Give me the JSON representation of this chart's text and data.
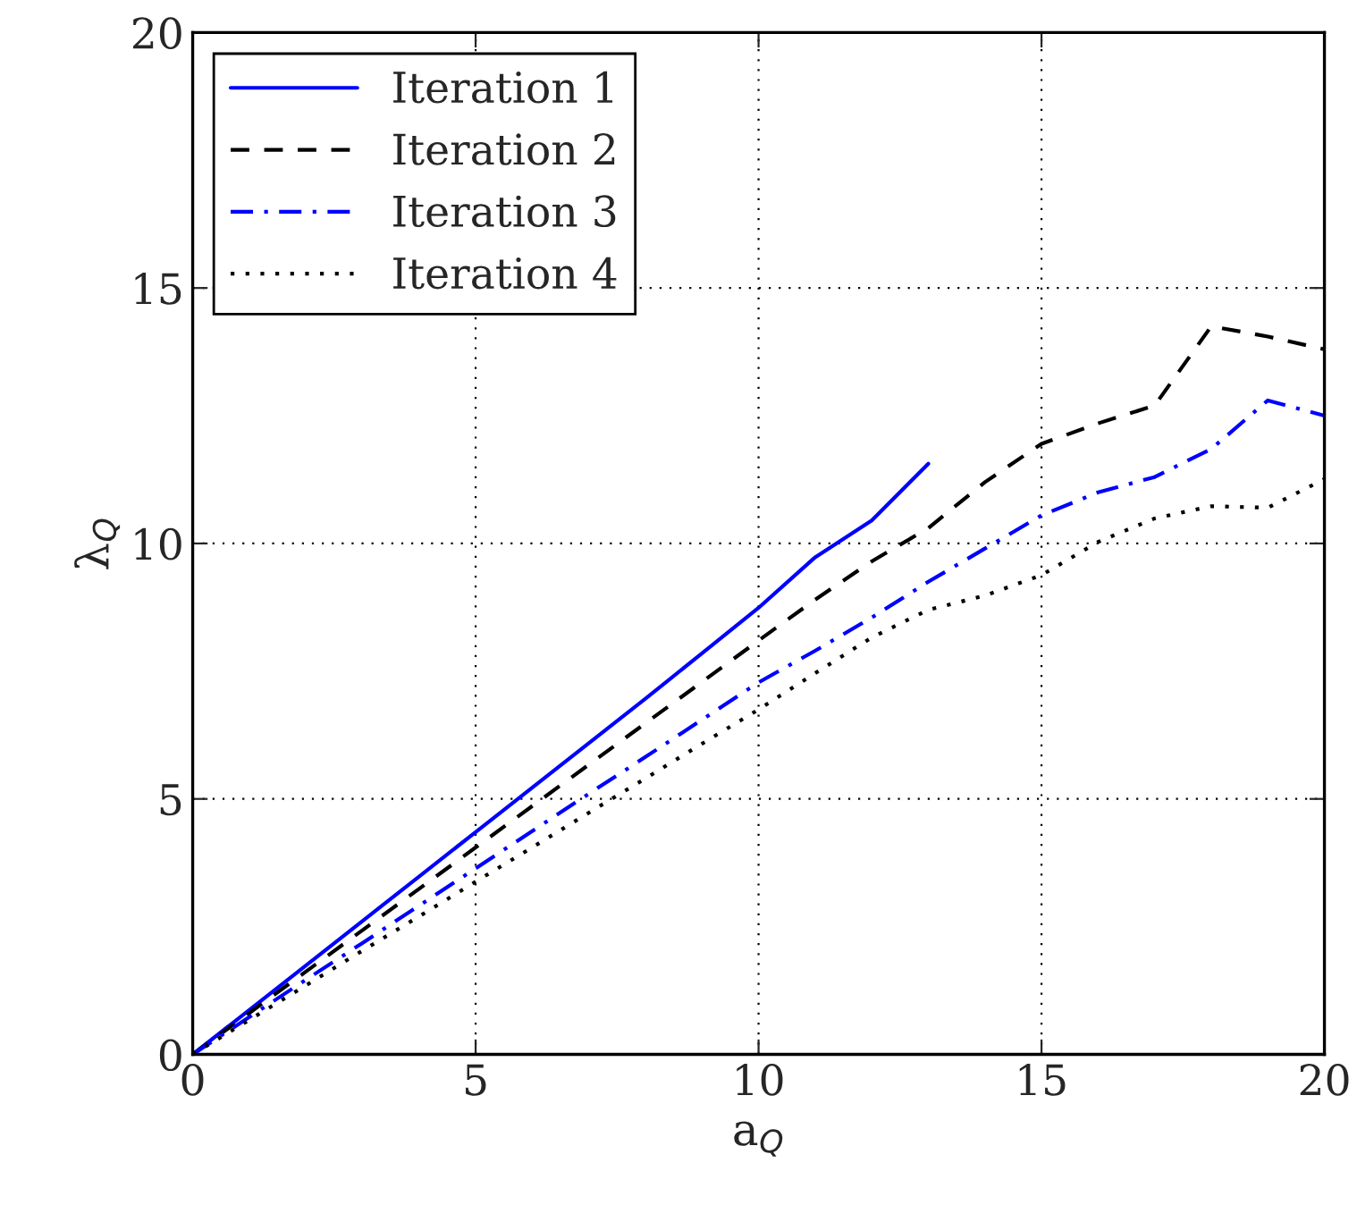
{
  "chart_data": {
    "type": "line",
    "xlabel": "a$_{Q}$",
    "ylabel": "λ$_{Q}$",
    "xlim": [
      0,
      20
    ],
    "ylim": [
      0,
      20
    ],
    "xticks": [
      0,
      5,
      10,
      15,
      20
    ],
    "yticks": [
      0,
      5,
      10,
      15,
      20
    ],
    "grid": true,
    "legend": "top left",
    "series": [
      {
        "name": "Iteration 1",
        "color": "#0000ff",
        "line_style": "solid",
        "x": [
          0,
          1,
          2,
          3,
          4,
          5,
          6,
          7,
          8,
          9,
          10,
          11,
          12,
          13
        ],
        "values": [
          0,
          0.87,
          1.74,
          2.61,
          3.48,
          4.35,
          5.22,
          6.09,
          6.96,
          7.85,
          8.74,
          9.73,
          10.45,
          11.56
        ]
      },
      {
        "name": "Iteration 2",
        "color": "#000000",
        "line_style": "dashed",
        "x": [
          0,
          1,
          2,
          3,
          4,
          5,
          6,
          7,
          8,
          9,
          10,
          11,
          12,
          13,
          14,
          15,
          16,
          17,
          18,
          19,
          20
        ],
        "values": [
          0,
          0.81,
          1.62,
          2.43,
          3.24,
          4.05,
          4.86,
          5.67,
          6.48,
          7.29,
          8.1,
          8.9,
          9.65,
          10.3,
          11.2,
          11.95,
          12.35,
          12.7,
          14.25,
          14.05,
          13.8
        ]
      },
      {
        "name": "Iteration 3",
        "color": "#0000ff",
        "line_style": "dashdot",
        "x": [
          0,
          1,
          2,
          3,
          4,
          5,
          6,
          7,
          8,
          9,
          10,
          11,
          12,
          13,
          14,
          15,
          16,
          17,
          18,
          19,
          20
        ],
        "values": [
          0,
          0.73,
          1.46,
          2.18,
          2.91,
          3.64,
          4.37,
          5.1,
          5.82,
          6.55,
          7.28,
          7.9,
          8.55,
          9.25,
          9.9,
          10.55,
          11.0,
          11.3,
          11.85,
          12.8,
          12.5
        ]
      },
      {
        "name": "Iteration 4",
        "color": "#000000",
        "line_style": "dotted",
        "x": [
          0,
          1,
          2,
          3,
          4,
          5,
          6,
          7,
          8,
          9,
          10,
          11,
          12,
          13,
          14,
          15,
          16,
          17,
          18,
          19,
          20
        ],
        "values": [
          0,
          0.675,
          1.35,
          2.03,
          2.7,
          3.38,
          4.05,
          4.73,
          5.4,
          6.08,
          6.75,
          7.46,
          8.16,
          8.7,
          8.98,
          9.38,
          10.03,
          10.49,
          10.73,
          10.7,
          11.26
        ]
      }
    ]
  }
}
